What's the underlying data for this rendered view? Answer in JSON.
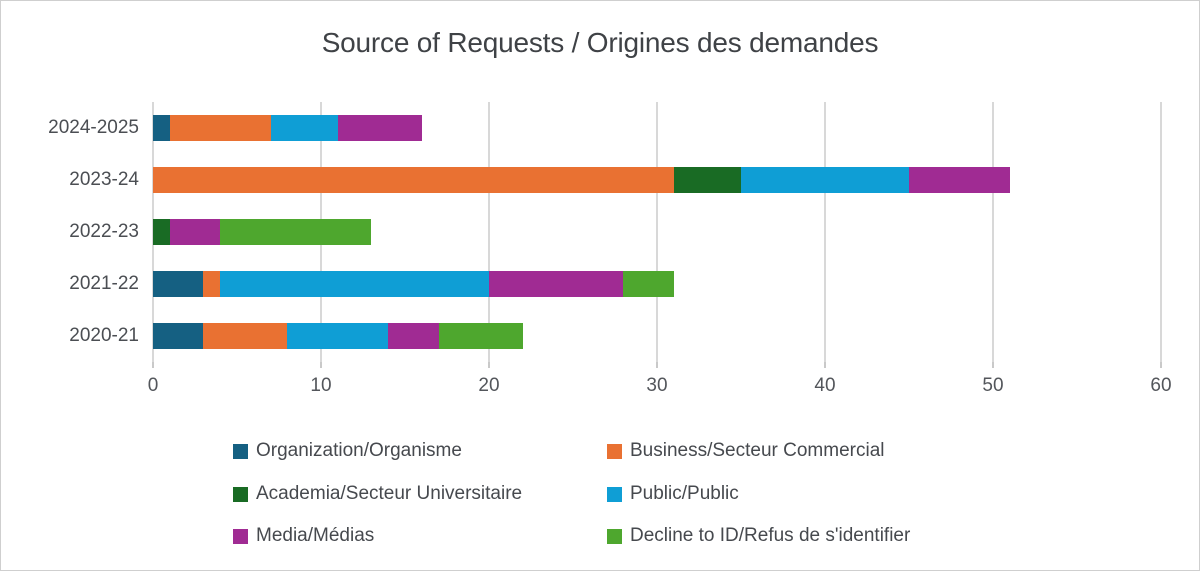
{
  "title": "Source of Requests / Origines des demandes",
  "chart_data": {
    "type": "bar",
    "orientation": "horizontal",
    "stacked": true,
    "title": "Source of Requests / Origines des demandes",
    "categories": [
      "2024-2025",
      "2023-24",
      "2022-23",
      "2021-22",
      "2020-21"
    ],
    "series": [
      {
        "name": "Organization/Organisme",
        "color": "#156082",
        "values": [
          1,
          0,
          0,
          3,
          3
        ]
      },
      {
        "name": "Business/Secteur Commercial",
        "color": "#E97132",
        "values": [
          6,
          31,
          0,
          1,
          5
        ]
      },
      {
        "name": "Academia/Secteur Universitaire",
        "color": "#196B24",
        "values": [
          0,
          4,
          1,
          0,
          0
        ]
      },
      {
        "name": "Public/Public",
        "color": "#0F9ED5",
        "values": [
          4,
          10,
          0,
          16,
          6
        ]
      },
      {
        "name": "Media/Médias",
        "color": "#A02B93",
        "values": [
          5,
          6,
          3,
          8,
          3
        ]
      },
      {
        "name": "Decline to ID/Refus de s'identifier",
        "color": "#4EA72E",
        "values": [
          0,
          0,
          9,
          3,
          5
        ]
      }
    ],
    "category_totals": [
      16,
      51,
      13,
      31,
      22
    ],
    "xlim": [
      0,
      60
    ],
    "xticks": [
      0,
      10,
      20,
      30,
      40,
      50,
      60
    ],
    "grid": "vertical",
    "legend_position": "bottom-two-columns",
    "colors": {
      "gridline": "#D8D8D8",
      "axis_text": "#53565B",
      "title_text": "#3F4246",
      "background": "#FFFFFF"
    }
  }
}
